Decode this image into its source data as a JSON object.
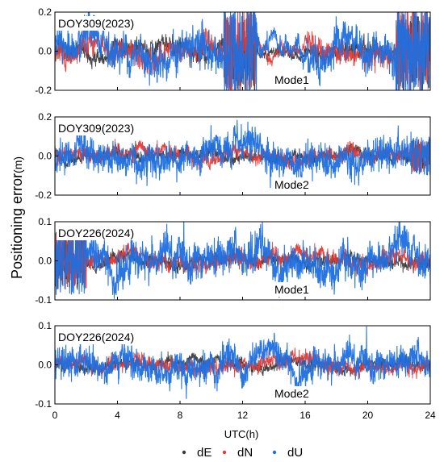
{
  "chart_data": {
    "type": "scatter",
    "ylabel": "Positioning error",
    "ylabel_unit": "(m)",
    "xlabel": "UTC(h)",
    "xlim": [
      0,
      24
    ],
    "xticks": [
      0,
      4,
      8,
      12,
      16,
      20,
      24
    ],
    "grid": false,
    "legend_placement": "bottom-center",
    "legend": [
      "dE",
      "dN",
      "dU"
    ],
    "series": [
      {
        "name": "dE",
        "color": "#3a3a3a"
      },
      {
        "name": "dN",
        "color": "#e53935"
      },
      {
        "name": "dU",
        "color": "#1e6fe0"
      }
    ],
    "panels": [
      {
        "label": "DOY309(2023)",
        "mode": "Mode1",
        "ylim": [
          -0.2,
          0.2
        ],
        "yticks": [
          "0.2",
          "0.0",
          "-0.2"
        ],
        "noise": {
          "dE": 0.022,
          "dN": 0.028,
          "dU": 0.045
        },
        "bursts": [
          {
            "start": 10.8,
            "end": 12.9,
            "amplitude": 0.22
          },
          {
            "start": 21.8,
            "end": 24.0,
            "amplitude": 0.22
          }
        ],
        "quiet": [
          {
            "start": 13.0,
            "end": 16.0,
            "scale": 0.45
          }
        ]
      },
      {
        "label": "DOY309(2023)",
        "mode": "Mode2",
        "ylim": [
          -0.2,
          0.2
        ],
        "yticks": [
          "0.2",
          "0.0",
          "-0.2"
        ],
        "noise": {
          "dE": 0.014,
          "dN": 0.018,
          "dU": 0.038
        },
        "bursts": [
          {
            "start": 22.8,
            "end": 24.0,
            "amplitude": 0.09
          }
        ],
        "quiet": []
      },
      {
        "label": "DOY226(2024)",
        "mode": "Mode1",
        "ylim": [
          -0.1,
          0.1
        ],
        "yticks": [
          "0.1",
          "0.0",
          "-0.1"
        ],
        "noise": {
          "dE": 0.008,
          "dN": 0.01,
          "dU": 0.022
        },
        "bursts": [
          {
            "start": 0.0,
            "end": 2.0,
            "amplitude": 0.08
          }
        ],
        "quiet": []
      },
      {
        "label": "DOY226(2024)",
        "mode": "Mode2",
        "ylim": [
          -0.1,
          0.1
        ],
        "yticks": [
          "0.1",
          "0.0",
          "-0.1"
        ],
        "noise": {
          "dE": 0.007,
          "dN": 0.009,
          "dU": 0.018
        },
        "bursts": [],
        "quiet": []
      }
    ]
  }
}
